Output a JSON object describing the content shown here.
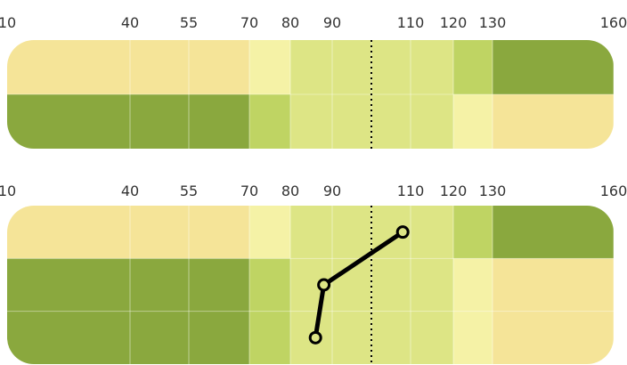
{
  "chart_data": [
    {
      "type": "heatmap",
      "x_ticks": [
        10,
        40,
        55,
        70,
        80,
        90,
        110,
        120,
        130,
        160
      ],
      "x_range": [
        10,
        160
      ],
      "rows": 2,
      "reference_x": 100,
      "bands": [
        {
          "x0": 10,
          "x1": 40,
          "colors": [
            "#f5e498",
            "#8aa83e"
          ]
        },
        {
          "x0": 40,
          "x1": 55,
          "colors": [
            "#f5e498",
            "#8aa83e"
          ]
        },
        {
          "x0": 55,
          "x1": 70,
          "colors": [
            "#f5e498",
            "#8aa83e"
          ]
        },
        {
          "x0": 70,
          "x1": 80,
          "colors": [
            "#f5f2a6",
            "#bfd463"
          ]
        },
        {
          "x0": 80,
          "x1": 90,
          "colors": [
            "#dde585",
            "#dde585"
          ]
        },
        {
          "x0": 90,
          "x1": 100,
          "colors": [
            "#dde585",
            "#dde585"
          ]
        },
        {
          "x0": 100,
          "x1": 110,
          "colors": [
            "#dde585",
            "#dde585"
          ]
        },
        {
          "x0": 110,
          "x1": 120,
          "colors": [
            "#dde585",
            "#dde585"
          ]
        },
        {
          "x0": 120,
          "x1": 130,
          "colors": [
            "#bfd463",
            "#f5f2a6"
          ]
        },
        {
          "x0": 130,
          "x1": 160,
          "colors": [
            "#8aa83e",
            "#f5e498"
          ]
        }
      ]
    },
    {
      "type": "heatmap",
      "x_ticks": [
        10,
        40,
        55,
        70,
        80,
        90,
        110,
        120,
        130,
        160
      ],
      "x_range": [
        10,
        160
      ],
      "rows": 3,
      "reference_x": 100,
      "bands": [
        {
          "x0": 10,
          "x1": 40,
          "colors": [
            "#f5e498",
            "#8aa83e",
            "#8aa83e"
          ]
        },
        {
          "x0": 40,
          "x1": 55,
          "colors": [
            "#f5e498",
            "#8aa83e",
            "#8aa83e"
          ]
        },
        {
          "x0": 55,
          "x1": 70,
          "colors": [
            "#f5e498",
            "#8aa83e",
            "#8aa83e"
          ]
        },
        {
          "x0": 70,
          "x1": 80,
          "colors": [
            "#f5f2a6",
            "#bfd463",
            "#bfd463"
          ]
        },
        {
          "x0": 80,
          "x1": 90,
          "colors": [
            "#dde585",
            "#dde585",
            "#dde585"
          ]
        },
        {
          "x0": 90,
          "x1": 100,
          "colors": [
            "#dde585",
            "#dde585",
            "#dde585"
          ]
        },
        {
          "x0": 100,
          "x1": 110,
          "colors": [
            "#dde585",
            "#dde585",
            "#dde585"
          ]
        },
        {
          "x0": 110,
          "x1": 120,
          "colors": [
            "#dde585",
            "#dde585",
            "#dde585"
          ]
        },
        {
          "x0": 120,
          "x1": 130,
          "colors": [
            "#bfd463",
            "#f5f2a6",
            "#f5f2a6"
          ]
        },
        {
          "x0": 130,
          "x1": 160,
          "colors": [
            "#8aa83e",
            "#f5e498",
            "#f5e498"
          ]
        }
      ],
      "trace": {
        "type": "line",
        "points": [
          {
            "x": 86,
            "row": 2
          },
          {
            "x": 88,
            "row": 1
          },
          {
            "x": 108,
            "row": 0
          }
        ],
        "color": "#000000"
      }
    }
  ]
}
